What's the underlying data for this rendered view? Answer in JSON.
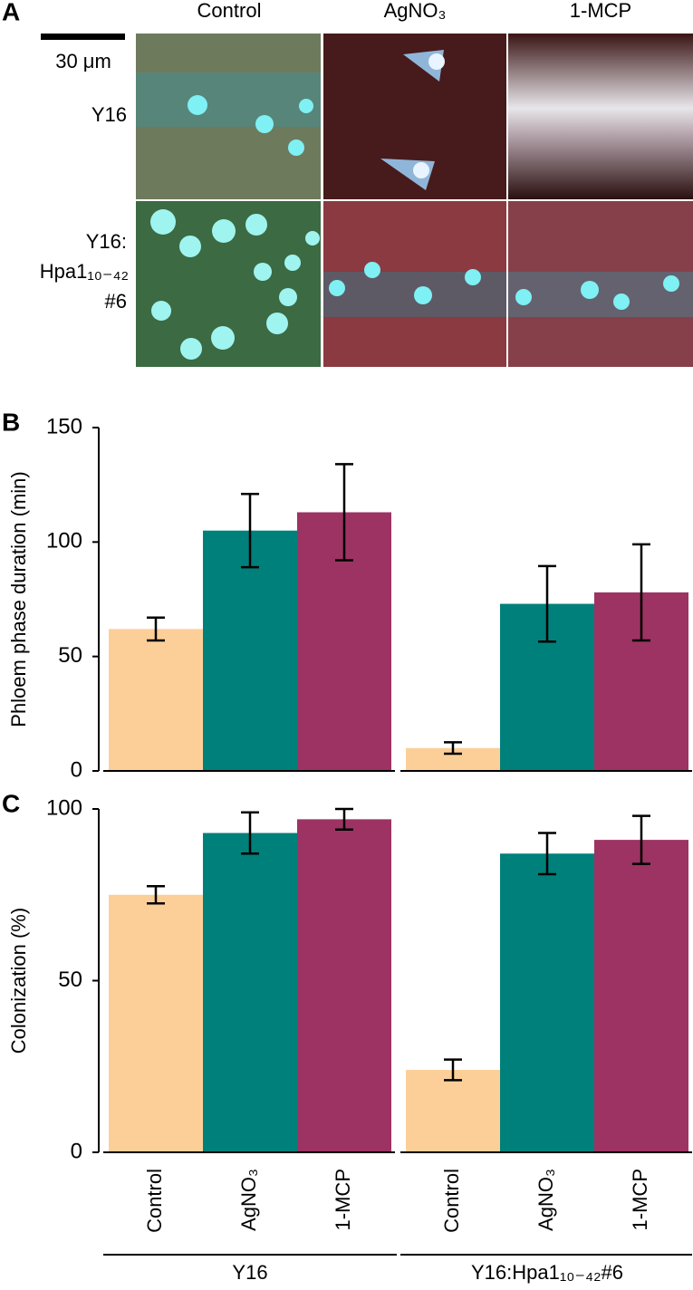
{
  "panel_a": {
    "letter": "A",
    "columns": [
      "Control",
      "AgNO₃",
      "1-MCP"
    ],
    "scale_bar": "30 μm",
    "rows": [
      [
        "Y16"
      ],
      [
        "Y16:",
        "Hpa1₁₀₋₄₂",
        "#6"
      ]
    ]
  },
  "chart_data": [
    {
      "type": "bar",
      "letter": "B",
      "ylabel": "Phloem phase duration (min)",
      "ylim": [
        0,
        150
      ],
      "yticks": [
        0,
        50,
        100,
        150
      ],
      "series": [
        {
          "color": "#fccf98",
          "values": [
            62,
            10
          ],
          "errors": [
            5,
            2.5
          ]
        },
        {
          "color": "#00807b",
          "values": [
            105,
            73
          ],
          "errors": [
            16,
            16.5
          ]
        },
        {
          "color": "#9c3363",
          "values": [
            113,
            78
          ],
          "errors": [
            21,
            21
          ]
        }
      ]
    },
    {
      "type": "bar",
      "letter": "C",
      "ylabel": "Colonization (%)",
      "ylim": [
        0,
        100
      ],
      "yticks": [
        0,
        50,
        100
      ],
      "groups": [
        "Y16",
        "Y16:Hpa1₁₀₋₄₂#6"
      ],
      "series": [
        {
          "name": "Control",
          "color": "#fccf98",
          "values": [
            75,
            24
          ],
          "errors": [
            2.5,
            3
          ]
        },
        {
          "name": "AgNO₃",
          "color": "#00807b",
          "values": [
            93,
            87
          ],
          "errors": [
            6,
            6
          ]
        },
        {
          "name": "1-MCP",
          "color": "#9c3363",
          "values": [
            97,
            91
          ],
          "errors": [
            3,
            7
          ]
        }
      ]
    }
  ]
}
